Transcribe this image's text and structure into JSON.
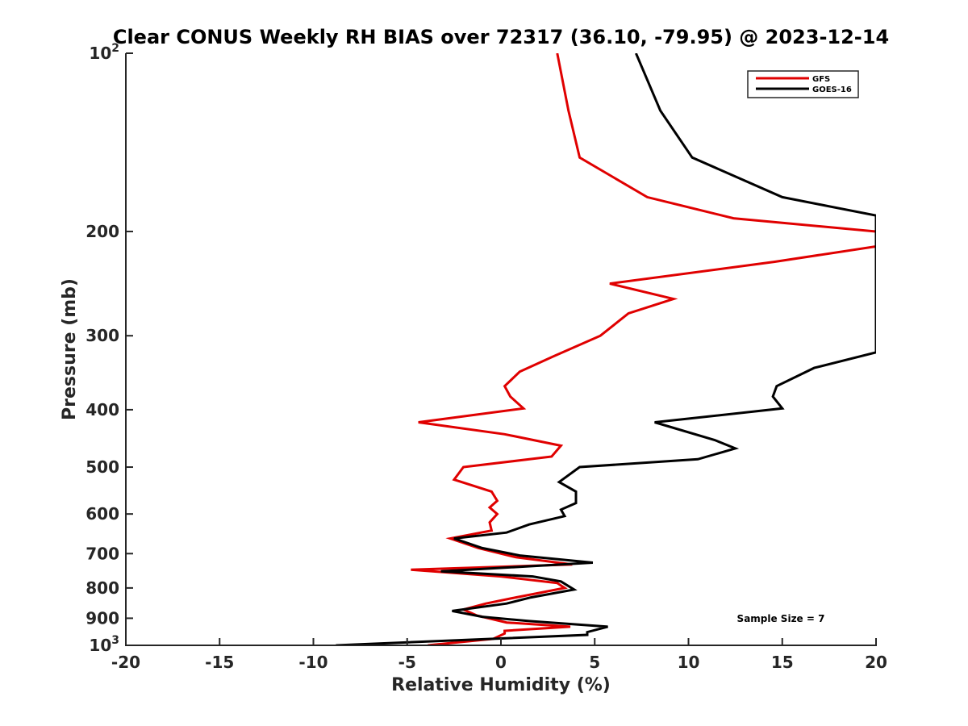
{
  "chart_data": {
    "type": "line",
    "title": "Clear CONUS Weekly RH BIAS over 72317 (36.10, -79.95) @ 2023-12-14",
    "xlabel": "Relative Humidity (%)",
    "ylabel": "Pressure (mb)",
    "xlim": [
      -20,
      20
    ],
    "ylim": [
      100,
      1000
    ],
    "yscale": "log",
    "y_reversed": true,
    "x_ticks": [
      "-20",
      "-15",
      "-10",
      "-5",
      "0",
      "5",
      "10",
      "15",
      "20"
    ],
    "y_ticks": [
      {
        "value": 100,
        "base": "10",
        "exp": "2"
      },
      {
        "value": 200,
        "label": "200"
      },
      {
        "value": 300,
        "label": "300"
      },
      {
        "value": 400,
        "label": "400"
      },
      {
        "value": 500,
        "label": "500"
      },
      {
        "value": 600,
        "label": "600"
      },
      {
        "value": 700,
        "label": "700"
      },
      {
        "value": 800,
        "label": "800"
      },
      {
        "value": 900,
        "label": "900"
      },
      {
        "value": 1000,
        "base": "10",
        "exp": "3"
      }
    ],
    "grid": false,
    "legend_position": "top-right",
    "annotation": "Sample Size = 7",
    "series": [
      {
        "name": "GFS",
        "color": "#e00000",
        "points": [
          [
            3.0,
            100
          ],
          [
            3.6,
            125
          ],
          [
            4.2,
            150
          ],
          [
            7.8,
            175
          ],
          [
            12.4,
            190
          ],
          [
            20,
            200
          ],
          [
            20,
            212
          ],
          [
            14.6,
            225
          ],
          [
            5.8,
            245
          ],
          [
            9.2,
            260
          ],
          [
            6.8,
            275
          ],
          [
            5.3,
            300
          ],
          [
            2.8,
            325
          ],
          [
            1.0,
            345
          ],
          [
            0.2,
            365
          ],
          [
            0.5,
            380
          ],
          [
            1.2,
            398
          ],
          [
            -4.4,
            420
          ],
          [
            0.2,
            440
          ],
          [
            3.2,
            460
          ],
          [
            2.7,
            480
          ],
          [
            -2.0,
            500
          ],
          [
            -2.5,
            525
          ],
          [
            -0.5,
            550
          ],
          [
            -0.2,
            570
          ],
          [
            -0.6,
            585
          ],
          [
            -0.2,
            600
          ],
          [
            -0.6,
            620
          ],
          [
            -0.5,
            640
          ],
          [
            -2.7,
            660
          ],
          [
            -1.2,
            685
          ],
          [
            0.8,
            710
          ],
          [
            3.8,
            730
          ],
          [
            -4.8,
            745
          ],
          [
            0.0,
            765
          ],
          [
            3.0,
            785
          ],
          [
            3.4,
            800
          ],
          [
            0.8,
            830
          ],
          [
            -0.8,
            850
          ],
          [
            -2.0,
            870
          ],
          [
            -1.3,
            890
          ],
          [
            0.3,
            915
          ],
          [
            3.7,
            930
          ],
          [
            0.2,
            945
          ],
          [
            0.2,
            955
          ],
          [
            -0.4,
            975
          ],
          [
            -3.9,
            1000
          ]
        ]
      },
      {
        "name": "GOES-16",
        "color": "#000000",
        "points": [
          [
            7.2,
            100
          ],
          [
            8.5,
            125
          ],
          [
            10.2,
            150
          ],
          [
            15.0,
            175
          ],
          [
            20,
            188
          ],
          [
            20,
            320
          ],
          [
            16.7,
            340
          ],
          [
            14.7,
            365
          ],
          [
            14.5,
            380
          ],
          [
            15.0,
            398
          ],
          [
            8.2,
            420
          ],
          [
            11.4,
            450
          ],
          [
            12.5,
            465
          ],
          [
            10.5,
            485
          ],
          [
            4.2,
            500
          ],
          [
            3.1,
            530
          ],
          [
            4.0,
            550
          ],
          [
            4.0,
            575
          ],
          [
            3.2,
            590
          ],
          [
            3.4,
            605
          ],
          [
            1.5,
            625
          ],
          [
            0.3,
            645
          ],
          [
            -2.5,
            660
          ],
          [
            -1.0,
            685
          ],
          [
            1.0,
            705
          ],
          [
            4.9,
            725
          ],
          [
            -3.2,
            750
          ],
          [
            1.7,
            765
          ],
          [
            3.2,
            780
          ],
          [
            3.9,
            805
          ],
          [
            1.6,
            830
          ],
          [
            0.3,
            850
          ],
          [
            -2.6,
            875
          ],
          [
            -1.0,
            895
          ],
          [
            1.5,
            910
          ],
          [
            5.7,
            930
          ],
          [
            4.6,
            950
          ],
          [
            4.6,
            960
          ],
          [
            -8.8,
            1000
          ]
        ]
      }
    ]
  }
}
